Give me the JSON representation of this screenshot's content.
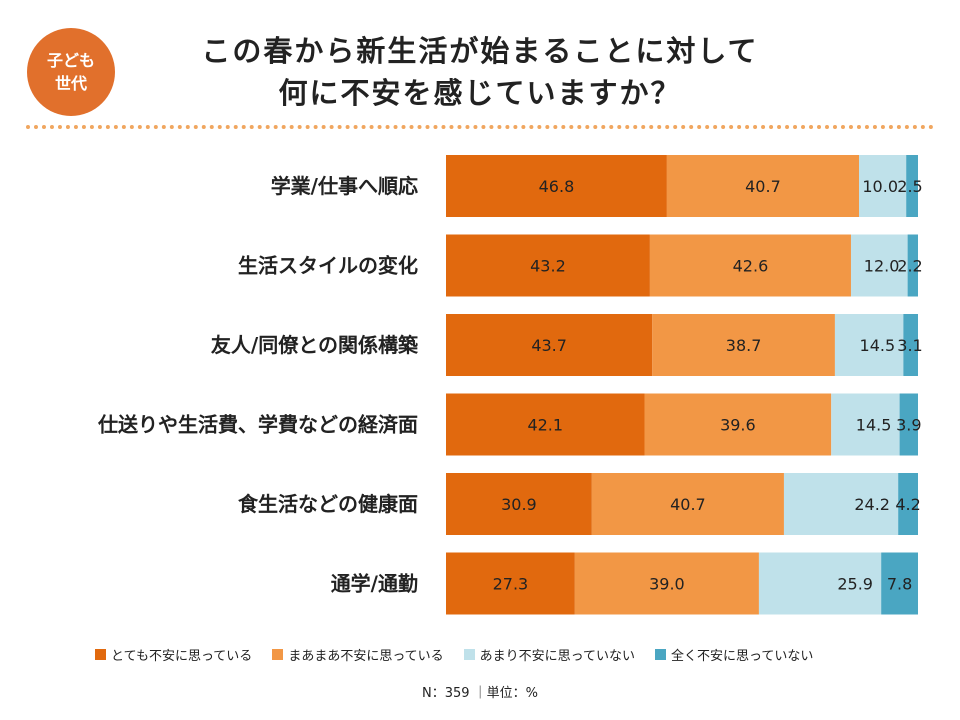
{
  "badge": {
    "line1": "子ども",
    "line2": "世代"
  },
  "title": {
    "line1": "この春から新生活が始まることに対して",
    "line2": "何に不安を感じていますか？"
  },
  "note": "N：359 ｜単位：%",
  "colors": {
    "very": "#e1690e",
    "somewhat": "#f29745",
    "notmuch": "#bfe1ea",
    "notatall": "#4aa6c2"
  },
  "chart_data": {
    "type": "bar",
    "orientation": "horizontal",
    "stacked": true,
    "unit": "%",
    "categories": [
      "学業/仕事へ順応",
      "生活スタイルの変化",
      "友人/同僚との関係構築",
      "仕送りや生活費、学費などの経済面",
      "食生活などの健康面",
      "通学/通勤"
    ],
    "series": [
      {
        "name": "とても不安に思っている",
        "values": [
          46.8,
          43.2,
          43.7,
          42.1,
          30.9,
          27.3
        ]
      },
      {
        "name": "まあまあ不安に思っている",
        "values": [
          40.7,
          42.6,
          38.7,
          39.6,
          40.7,
          39.0
        ]
      },
      {
        "name": "あまり不安に思っていない",
        "values": [
          10.0,
          12.0,
          14.5,
          14.5,
          24.2,
          25.9
        ]
      },
      {
        "name": "全く不安に思っていない",
        "values": [
          2.5,
          2.2,
          3.1,
          3.9,
          4.2,
          7.8
        ]
      }
    ],
    "labels": [
      [
        "46.8",
        "40.7",
        "10.0",
        "2.5"
      ],
      [
        "43.2",
        "42.6",
        "12.0",
        "2.2"
      ],
      [
        "43.7",
        "38.7",
        "14.5",
        "3.1"
      ],
      [
        "42.1",
        "39.6",
        "14.5",
        "3.9"
      ],
      [
        "30.9",
        "40.7",
        "24.2",
        "4.2"
      ],
      [
        "27.3",
        "39.0",
        "25.9",
        "7.8"
      ]
    ],
    "xlim": [
      0,
      100
    ],
    "legend_position": "bottom"
  }
}
